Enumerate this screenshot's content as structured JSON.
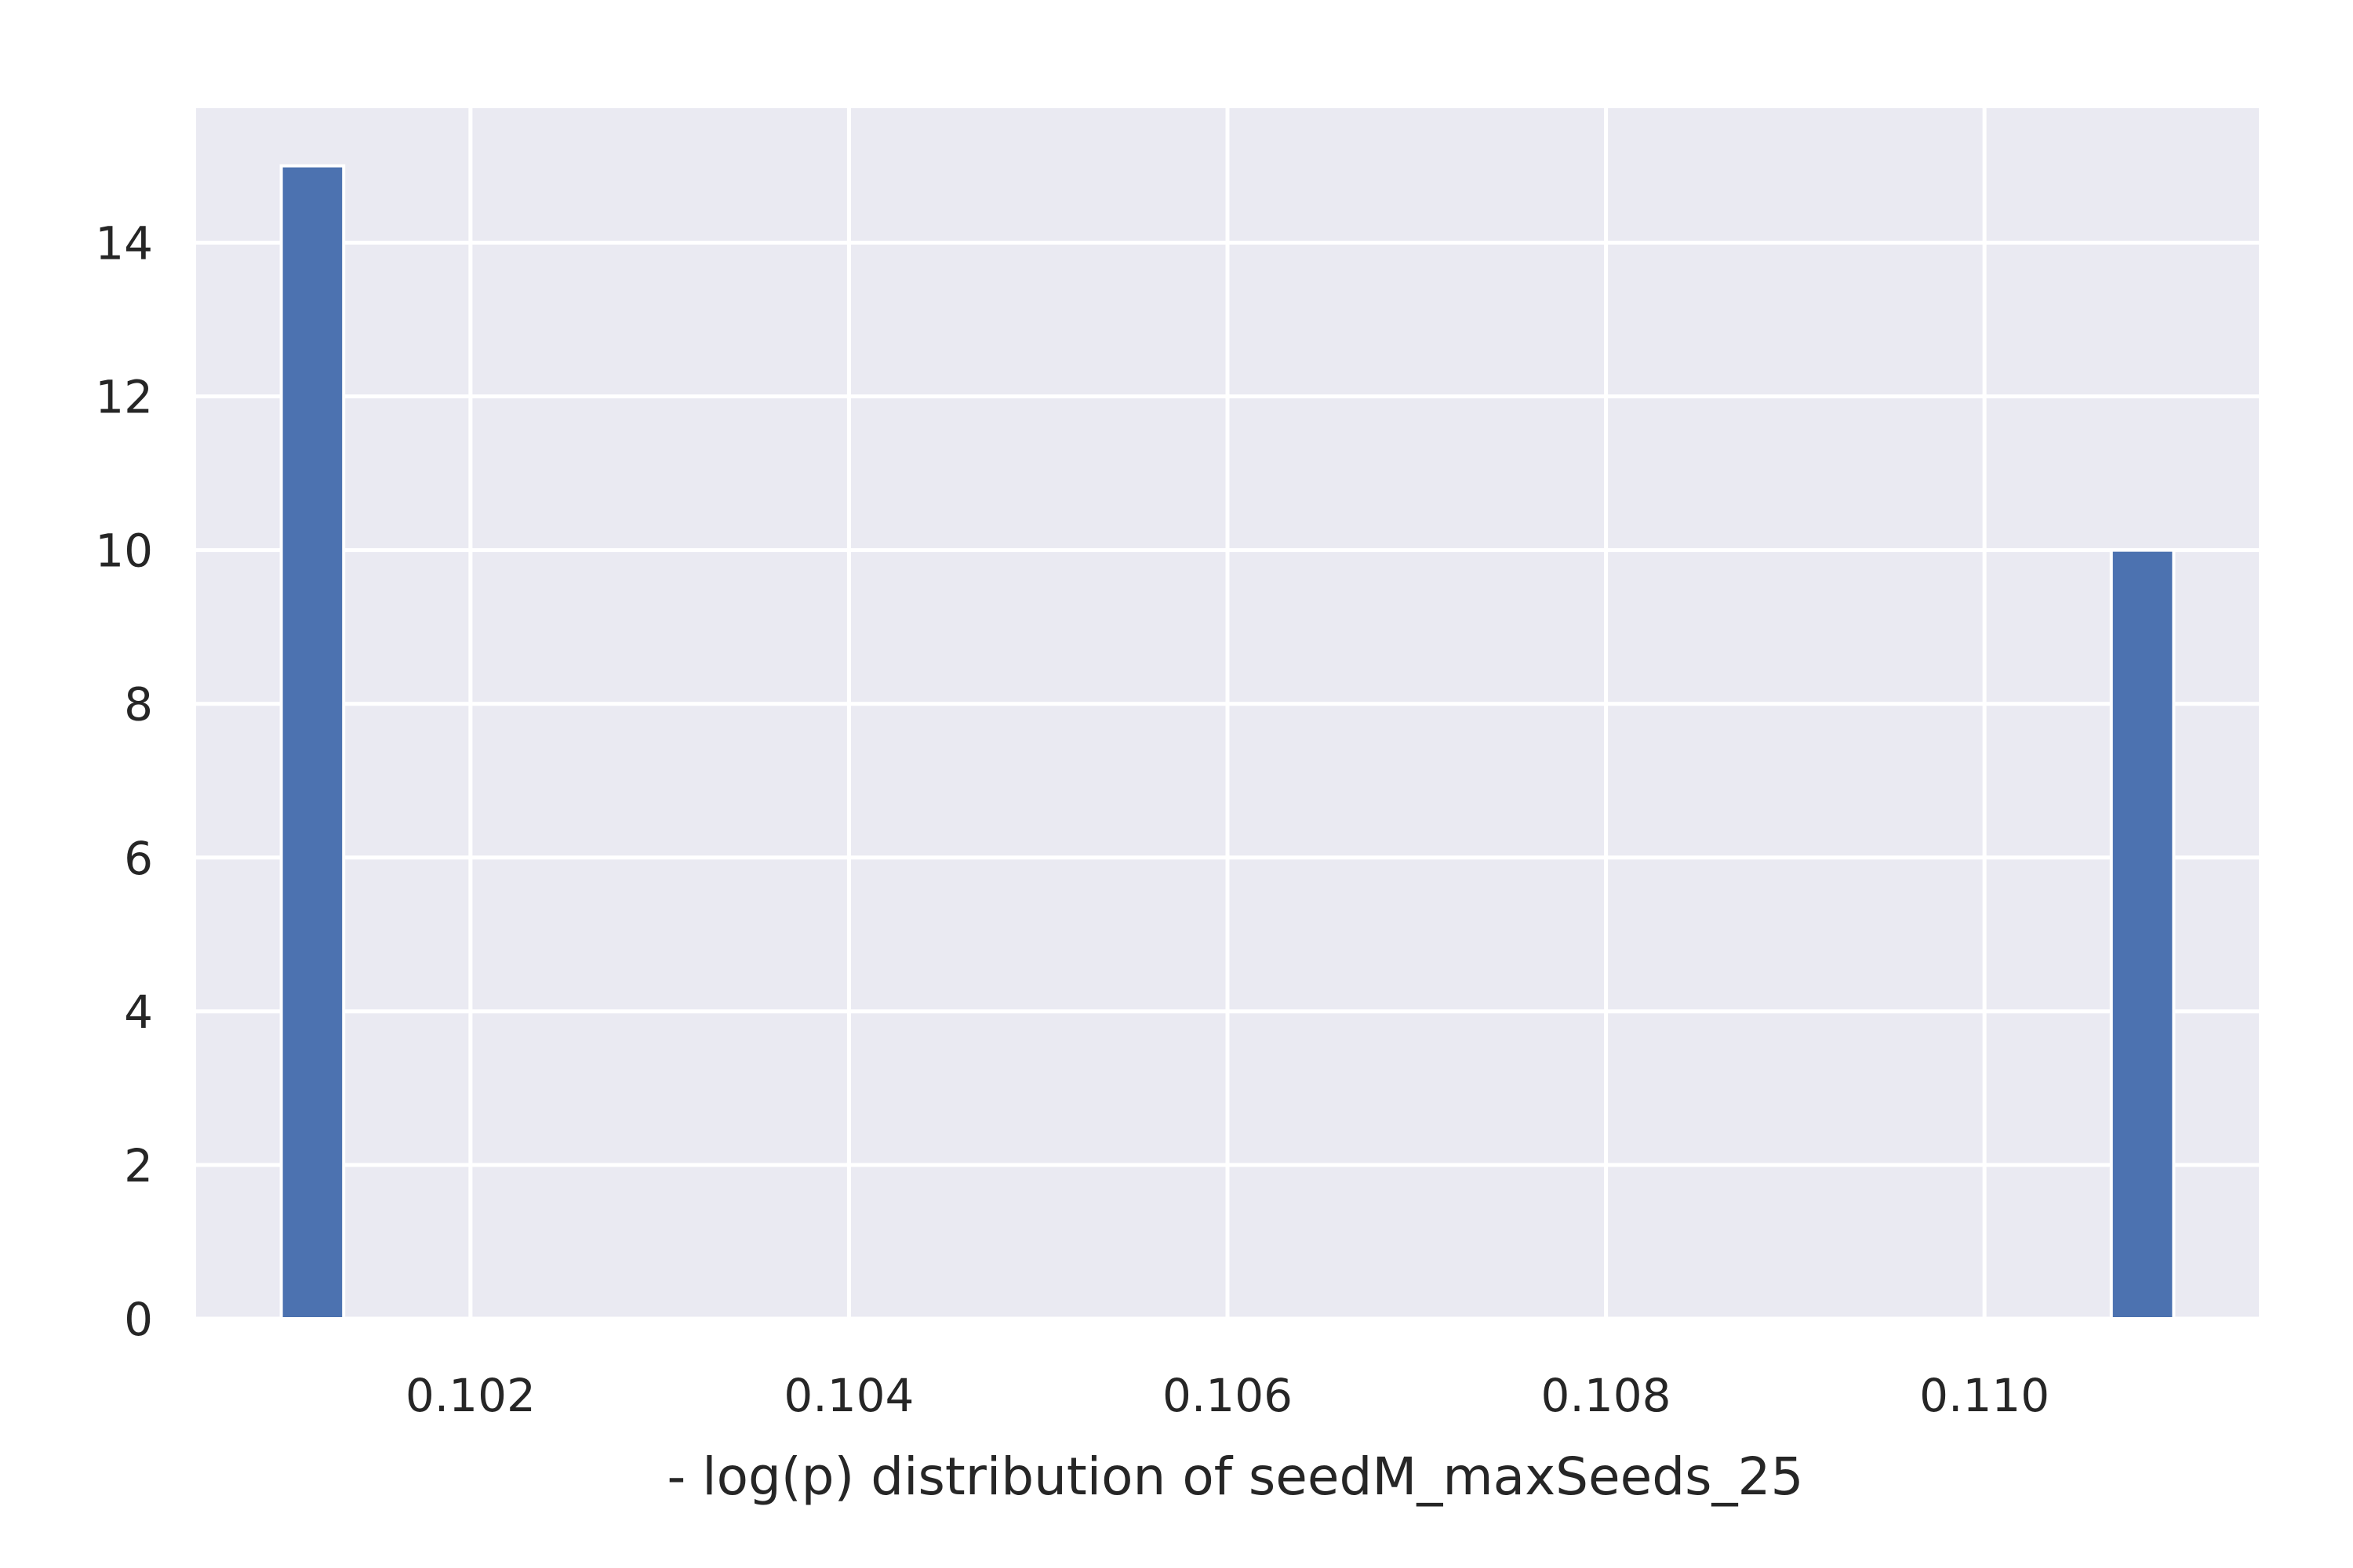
{
  "chart_data": {
    "type": "bar",
    "title": "",
    "xlabel": "- log(p) distribution of seedM_maxSeeds_25",
    "ylabel": "",
    "xlim": [
      0.10055,
      0.11145
    ],
    "ylim": [
      0,
      15.75
    ],
    "grid": true,
    "bars": [
      {
        "x_start": 0.101,
        "x_end": 0.10133,
        "value": 15
      },
      {
        "x_start": 0.11067,
        "x_end": 0.111,
        "value": 10
      }
    ],
    "x_ticks": [
      {
        "value": 0.102,
        "label": "0.102"
      },
      {
        "value": 0.104,
        "label": "0.104"
      },
      {
        "value": 0.106,
        "label": "0.106"
      },
      {
        "value": 0.108,
        "label": "0.108"
      },
      {
        "value": 0.11,
        "label": "0.110"
      }
    ],
    "y_ticks": [
      {
        "value": 0,
        "label": "0"
      },
      {
        "value": 2,
        "label": "2"
      },
      {
        "value": 4,
        "label": "4"
      },
      {
        "value": 6,
        "label": "6"
      },
      {
        "value": 8,
        "label": "8"
      },
      {
        "value": 10,
        "label": "10"
      },
      {
        "value": 12,
        "label": "12"
      },
      {
        "value": 14,
        "label": "14"
      }
    ],
    "colors": {
      "bar": "#4c72b0",
      "plot_background": "#eaeaf2",
      "grid": "#ffffff",
      "text": "#262626"
    }
  }
}
